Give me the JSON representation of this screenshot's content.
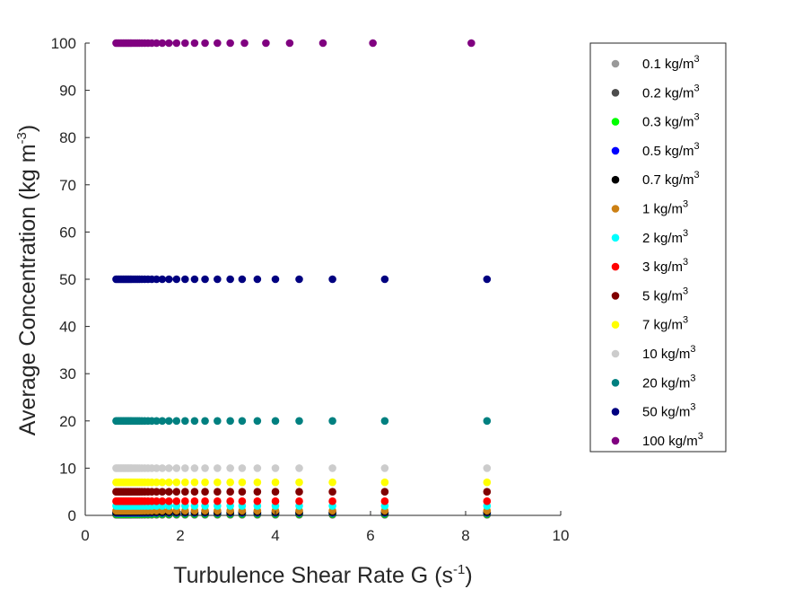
{
  "chart_data": {
    "type": "scatter",
    "title": "",
    "xlabel": {
      "main": "Turbulence Shear Rate G (s",
      "sup": "-1",
      "tail": ")"
    },
    "ylabel": {
      "main": "Average Concentration (kg m",
      "sup": "-3",
      "tail": ")"
    },
    "xlim": [
      0,
      10
    ],
    "ylim": [
      0,
      100
    ],
    "xticks": [
      0,
      2,
      4,
      6,
      8,
      10
    ],
    "yticks": [
      0,
      10,
      20,
      30,
      40,
      50,
      60,
      70,
      80,
      90,
      100
    ],
    "grid": false,
    "legend_position": "right",
    "x": [
      0.65,
      0.68,
      0.71,
      0.74,
      0.77,
      0.8,
      0.83,
      0.86,
      0.89,
      0.92,
      0.95,
      0.98,
      1.02,
      1.06,
      1.1,
      1.14,
      1.19,
      1.25,
      1.32,
      1.4,
      1.5,
      1.62,
      1.76,
      1.92,
      2.1,
      2.3,
      2.52,
      2.78,
      3.05,
      3.3,
      3.62,
      4.0,
      4.5,
      5.2,
      6.3,
      8.45
    ],
    "series": [
      {
        "name": "0.1 kg/m",
        "name_sup": "3",
        "color": "#999999",
        "y": 0.1
      },
      {
        "name": "0.2 kg/m",
        "name_sup": "3",
        "color": "#4d4d4d",
        "y": 0.2
      },
      {
        "name": "0.3 kg/m",
        "name_sup": "3",
        "color": "#00ff00",
        "y": 0.3
      },
      {
        "name": "0.5 kg/m",
        "name_sup": "3",
        "color": "#0000ff",
        "y": 0.5
      },
      {
        "name": "0.7 kg/m",
        "name_sup": "3",
        "color": "#000000",
        "y": 0.7
      },
      {
        "name": "1 kg/m",
        "name_sup": "3",
        "color": "#cc8014",
        "y": 1
      },
      {
        "name": "2 kg/m",
        "name_sup": "3",
        "color": "#00ffff",
        "y": 2
      },
      {
        "name": "3 kg/m",
        "name_sup": "3",
        "color": "#ff0000",
        "y": 3
      },
      {
        "name": "5 kg/m",
        "name_sup": "3",
        "color": "#800000",
        "y": 5
      },
      {
        "name": "7 kg/m",
        "name_sup": "3",
        "color": "#ffff00",
        "y": 7
      },
      {
        "name": "10 kg/m",
        "name_sup": "3",
        "color": "#cccccc",
        "y": 10
      },
      {
        "name": "20 kg/m",
        "name_sup": "3",
        "color": "#008080",
        "y": 20
      },
      {
        "name": "50 kg/m",
        "name_sup": "3",
        "color": "#000080",
        "y": 50
      },
      {
        "name": "100 kg/m",
        "name_sup": "3",
        "color": "#800080",
        "y": 100,
        "x": [
          0.65,
          0.68,
          0.71,
          0.74,
          0.77,
          0.8,
          0.83,
          0.86,
          0.89,
          0.92,
          0.95,
          0.98,
          1.02,
          1.06,
          1.1,
          1.14,
          1.19,
          1.25,
          1.32,
          1.4,
          1.5,
          1.62,
          1.76,
          1.92,
          2.1,
          2.3,
          2.52,
          2.78,
          3.05,
          3.35,
          3.8,
          4.3,
          5.0,
          6.05,
          8.12
        ]
      }
    ]
  }
}
